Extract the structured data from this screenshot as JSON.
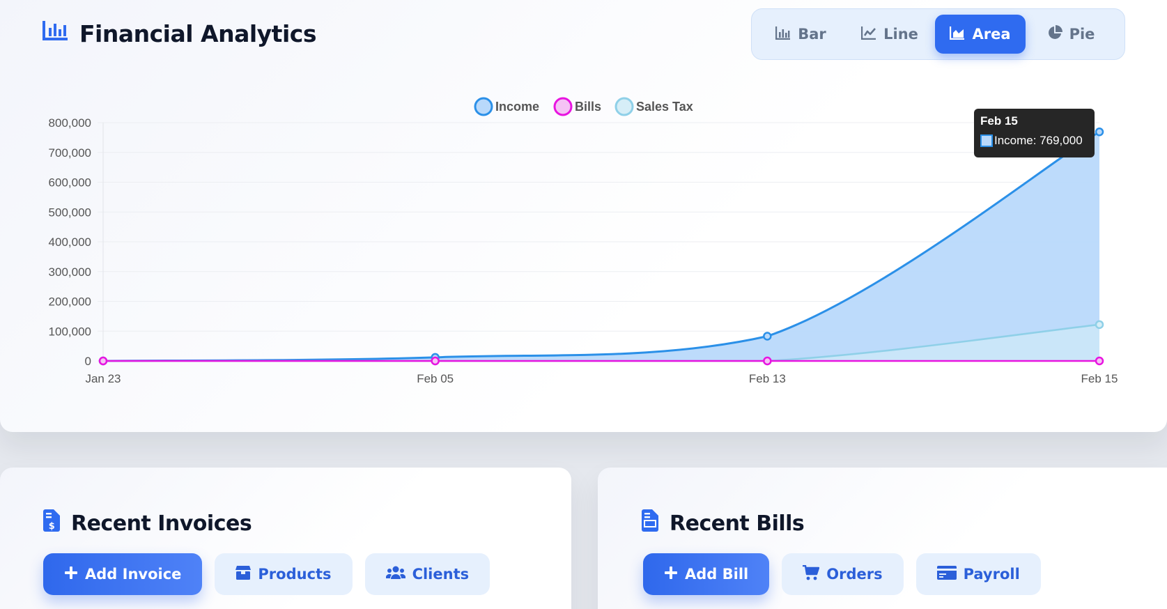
{
  "analytics": {
    "title": "Financial Analytics",
    "chart_types": [
      {
        "label": "Bar",
        "icon": "bar-chart-icon",
        "active": false
      },
      {
        "label": "Line",
        "icon": "line-chart-icon",
        "active": false
      },
      {
        "label": "Area",
        "icon": "area-chart-icon",
        "active": true
      },
      {
        "label": "Pie",
        "icon": "pie-chart-icon",
        "active": false
      }
    ],
    "tooltip": {
      "title": "Feb 15",
      "label": "Income: 769,000"
    }
  },
  "chart_data": {
    "type": "area",
    "categories": [
      "Jan 23",
      "Feb 05",
      "Feb 13",
      "Feb 15"
    ],
    "series": [
      {
        "name": "Income",
        "values": [
          0,
          12000,
          83000,
          769000
        ],
        "color": "#2b90e8",
        "fill": "#b9d9fb"
      },
      {
        "name": "Bills",
        "values": [
          0,
          0,
          0,
          0
        ],
        "color": "#e814e0",
        "fill": "#f5c2f5"
      },
      {
        "name": "Sales Tax",
        "values": [
          0,
          0,
          0,
          122000
        ],
        "color": "#8fd0e8",
        "fill": "#d6eef7"
      }
    ],
    "y_ticks": [
      "0",
      "100,000",
      "200,000",
      "300,000",
      "400,000",
      "500,000",
      "600,000",
      "700,000",
      "800,000"
    ],
    "ylim": [
      0,
      800000
    ],
    "grid": true,
    "legend_position": "top"
  },
  "invoices": {
    "title": "Recent Invoices",
    "buttons": [
      {
        "label": "Add Invoice",
        "icon": "plus-icon",
        "style": "primary"
      },
      {
        "label": "Products",
        "icon": "box-icon",
        "style": "secondary"
      },
      {
        "label": "Clients",
        "icon": "users-icon",
        "style": "secondary"
      }
    ]
  },
  "bills": {
    "title": "Recent Bills",
    "buttons": [
      {
        "label": "Add Bill",
        "icon": "plus-icon",
        "style": "primary"
      },
      {
        "label": "Orders",
        "icon": "cart-icon",
        "style": "secondary"
      },
      {
        "label": "Payroll",
        "icon": "card-icon",
        "style": "secondary"
      }
    ]
  },
  "colors": {
    "accent": "#2f6bf0",
    "income": "#2b90e8",
    "bills": "#e814e0",
    "sales_tax": "#8fd0e8"
  }
}
